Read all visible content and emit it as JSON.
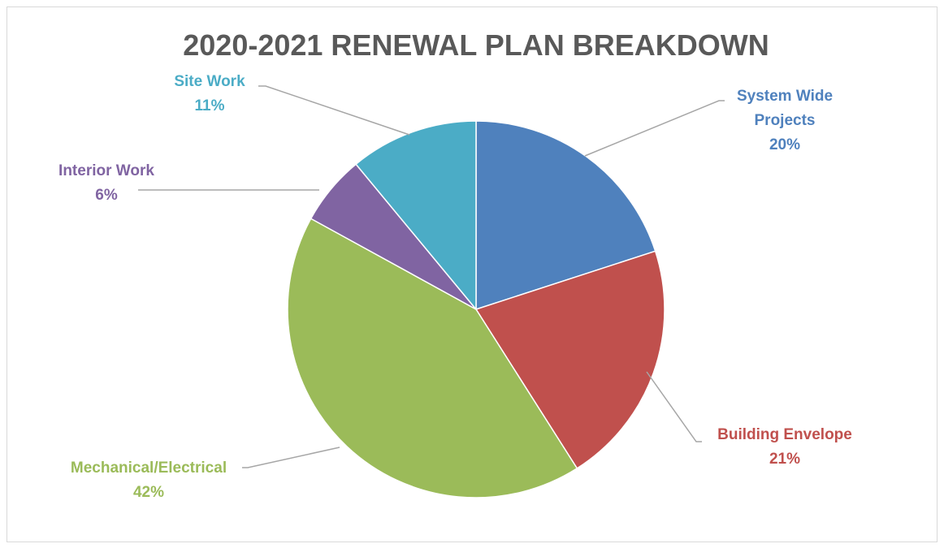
{
  "chart_data": {
    "type": "pie",
    "title": "2020-2021 RENEWAL PLAN BREAKDOWN",
    "categories": [
      "System Wide Projects",
      "Building Envelope",
      "Mechanical/Electrical",
      "Interior Work",
      "Site Work"
    ],
    "values": [
      20,
      21,
      42,
      6,
      11
    ],
    "value_labels": [
      "20%",
      "21%",
      "42%",
      "6%",
      "11%"
    ],
    "label_lines": [
      [
        "System Wide",
        "Projects"
      ],
      [
        "Building Envelope"
      ],
      [
        "Mechanical/Electrical"
      ],
      [
        "Interior Work"
      ],
      [
        "Site Work"
      ]
    ],
    "colors": [
      "#4f81bd",
      "#c0504d",
      "#9bbb59",
      "#8064a2",
      "#4bacc6"
    ],
    "start_angle_deg": 0,
    "direction": "clockwise",
    "legend": "none",
    "data_labels": "outside-with-leader-lines"
  }
}
